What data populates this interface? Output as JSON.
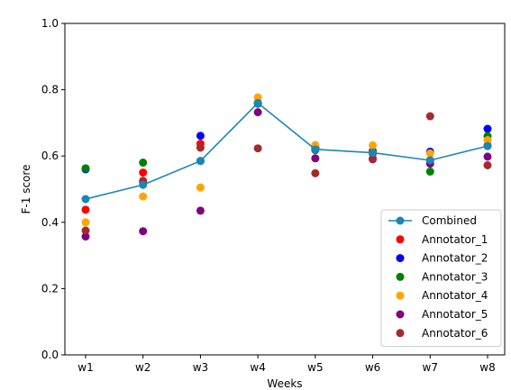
{
  "chart_data": {
    "type": "scatter",
    "title": "",
    "xlabel": "Weeks",
    "ylabel": "F-1 score",
    "categories": [
      "w1",
      "w2",
      "w3",
      "w4",
      "w5",
      "w6",
      "w7",
      "w8"
    ],
    "ylim": [
      0.0,
      1.0
    ],
    "yticks": [
      "0.0",
      "0.2",
      "0.4",
      "0.6",
      "0.8",
      "1.0"
    ],
    "grid": false,
    "legend_position": "lower-right",
    "series": [
      {
        "name": "Combined",
        "type": "line",
        "color": "#1a86b8",
        "values": [
          0.47,
          0.513,
          0.585,
          0.76,
          0.62,
          0.61,
          0.587,
          0.63
        ]
      },
      {
        "name": "Annotator_1",
        "type": "scatter",
        "color": "#ff0000",
        "values": [
          0.438,
          0.55,
          0.637,
          0.758,
          0.623,
          0.607,
          0.587,
          0.632
        ]
      },
      {
        "name": "Annotator_2",
        "type": "scatter",
        "color": "#0000ff",
        "values": [
          0.56,
          0.522,
          0.661,
          0.76,
          0.625,
          0.615,
          0.613,
          0.682
        ]
      },
      {
        "name": "Annotator_3",
        "type": "scatter",
        "color": "#008000",
        "values": [
          0.563,
          0.58,
          0.585,
          0.758,
          0.618,
          0.613,
          0.553,
          0.66
        ]
      },
      {
        "name": "Annotator_4",
        "type": "scatter",
        "color": "#ffa500",
        "values": [
          0.4,
          0.478,
          0.505,
          0.777,
          0.633,
          0.632,
          0.608,
          0.648
        ]
      },
      {
        "name": "Annotator_5",
        "type": "scatter",
        "color": "#800080",
        "values": [
          0.357,
          0.373,
          0.435,
          0.732,
          0.593,
          0.59,
          0.577,
          0.598
        ]
      },
      {
        "name": "Annotator_6",
        "type": "scatter",
        "color": "#a52a2a",
        "values": [
          0.375,
          0.525,
          0.625,
          0.623,
          0.548,
          0.592,
          0.72,
          0.572
        ]
      }
    ]
  }
}
